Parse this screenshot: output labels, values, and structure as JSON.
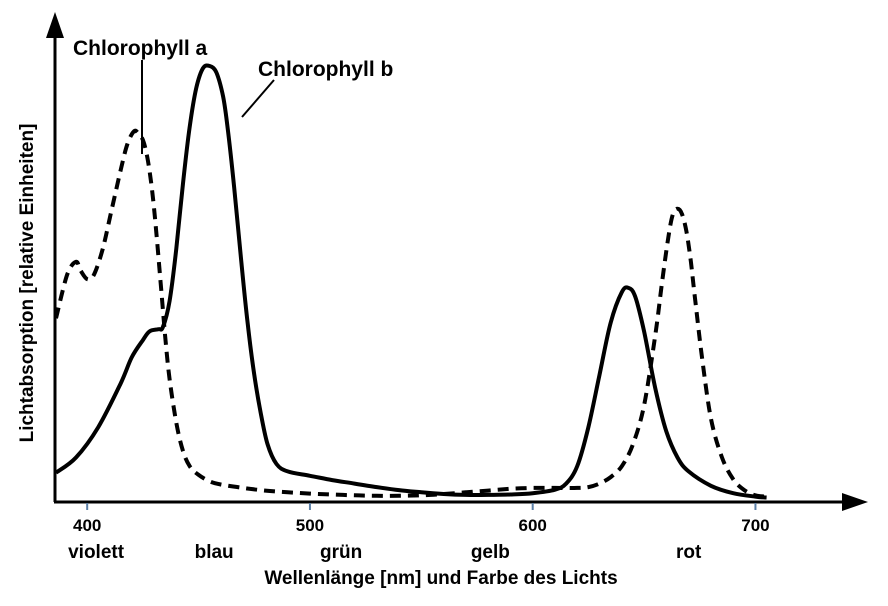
{
  "chart_data": {
    "type": "line",
    "xlabel": "Wellenlänge [nm] und Farbe des Lichts",
    "ylabel": "Lichtabsorption [relative Einheiten]",
    "xlim": [
      386,
      720
    ],
    "ylim": [
      0,
      1
    ],
    "x_ticks": [
      400,
      500,
      600,
      700
    ],
    "x_tick_labels": [
      "400",
      "500",
      "600",
      "700"
    ],
    "color_labels": [
      {
        "label": "violett",
        "x": 404
      },
      {
        "label": "blau",
        "x": 457
      },
      {
        "label": "grün",
        "x": 514
      },
      {
        "label": "gelb",
        "x": 581
      },
      {
        "label": "rot",
        "x": 670
      }
    ],
    "series": [
      {
        "name": "Chlorophyll a",
        "style": "dashed",
        "color": "#000000",
        "x": [
          386,
          391,
          395,
          397,
          400,
          403,
          407,
          411,
          415,
          418,
          421,
          423,
          425,
          427,
          429,
          431,
          433,
          435,
          437,
          440,
          443,
          446,
          450,
          455,
          460,
          470,
          480,
          490,
          500,
          510,
          520,
          530,
          540,
          550,
          560,
          570,
          580,
          590,
          600,
          610,
          620,
          625,
          630,
          635,
          640,
          645,
          650,
          655,
          658,
          661,
          663,
          665,
          667,
          669,
          671,
          673,
          676,
          680,
          685,
          690,
          695,
          700,
          705
        ],
        "values": [
          0.42,
          0.52,
          0.55,
          0.53,
          0.51,
          0.52,
          0.58,
          0.67,
          0.76,
          0.82,
          0.85,
          0.845,
          0.83,
          0.79,
          0.72,
          0.62,
          0.5,
          0.38,
          0.28,
          0.18,
          0.115,
          0.08,
          0.06,
          0.045,
          0.038,
          0.03,
          0.024,
          0.02,
          0.017,
          0.015,
          0.013,
          0.012,
          0.012,
          0.013,
          0.016,
          0.02,
          0.024,
          0.028,
          0.03,
          0.03,
          0.03,
          0.032,
          0.04,
          0.055,
          0.08,
          0.13,
          0.22,
          0.38,
          0.5,
          0.61,
          0.66,
          0.672,
          0.66,
          0.62,
          0.55,
          0.46,
          0.33,
          0.19,
          0.1,
          0.05,
          0.025,
          0.013,
          0.01
        ]
      },
      {
        "name": "Chlorophyll b",
        "style": "solid",
        "color": "#000000",
        "x": [
          386,
          395,
          405,
          415,
          420,
          425,
          428,
          432,
          434,
          437,
          440,
          443,
          446,
          449,
          452,
          455,
          458,
          461,
          463,
          466,
          469,
          472,
          475,
          478,
          481,
          485,
          490,
          500,
          510,
          520,
          530,
          540,
          550,
          560,
          570,
          580,
          590,
          600,
          610,
          615,
          620,
          625,
          630,
          635,
          640,
          643,
          646,
          650,
          655,
          660,
          665,
          670,
          680,
          690,
          700,
          705
        ],
        "values": [
          0.065,
          0.1,
          0.17,
          0.27,
          0.33,
          0.37,
          0.39,
          0.395,
          0.4,
          0.46,
          0.58,
          0.73,
          0.86,
          0.95,
          0.995,
          1.0,
          0.985,
          0.93,
          0.86,
          0.72,
          0.56,
          0.41,
          0.29,
          0.2,
          0.13,
          0.085,
          0.068,
          0.058,
          0.048,
          0.04,
          0.032,
          0.025,
          0.02,
          0.016,
          0.014,
          0.014,
          0.015,
          0.018,
          0.026,
          0.04,
          0.08,
          0.17,
          0.29,
          0.41,
          0.48,
          0.49,
          0.47,
          0.39,
          0.26,
          0.16,
          0.1,
          0.068,
          0.035,
          0.018,
          0.01,
          0.008
        ]
      }
    ]
  },
  "series_labels": {
    "chlorophyll_a": "Chlorophyll a",
    "chlorophyll_b": "Chlorophyll b"
  }
}
